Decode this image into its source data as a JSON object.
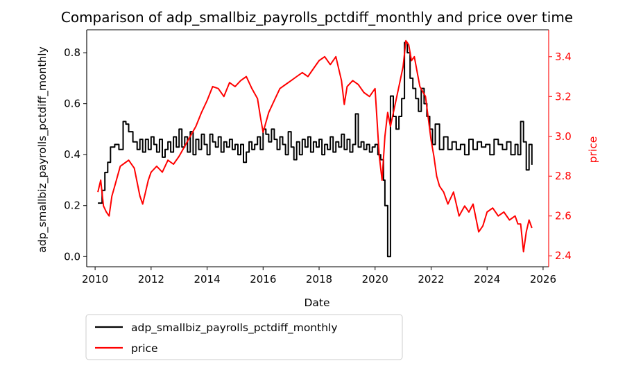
{
  "chart_data": {
    "type": "line",
    "title": "Comparison of adp_smallbiz_payrolls_pctdiff_monthly and price over time",
    "xlabel": "Date",
    "ylabel_left": "adp_smallbiz_payrolls_pctdiff_monthly",
    "ylabel_right": "price",
    "xlim": [
      2009.7,
      2026.2
    ],
    "ylim_left": [
      -0.04,
      0.89
    ],
    "ylim_right": [
      2.345,
      3.535
    ],
    "x_ticks": [
      2010,
      2012,
      2014,
      2016,
      2018,
      2020,
      2022,
      2024,
      2026
    ],
    "x_tick_labels": [
      "2010",
      "2012",
      "2014",
      "2016",
      "2018",
      "2020",
      "2022",
      "2024",
      "2026"
    ],
    "y_left_ticks": [
      0.0,
      0.2,
      0.4,
      0.6,
      0.8
    ],
    "y_left_tick_labels": [
      "0.0",
      "0.2",
      "0.4",
      "0.6",
      "0.8"
    ],
    "y_right_ticks": [
      2.4,
      2.6,
      2.8,
      3.0,
      3.2,
      3.4
    ],
    "y_right_tick_labels": [
      "2.4",
      "2.6",
      "2.8",
      "3.0",
      "3.2",
      "3.4"
    ],
    "grid": false,
    "legend_placement": "below-left",
    "right_axis_color": "#ff0000",
    "series": [
      {
        "name": "adp_smallbiz_payrolls_pctdiff_monthly",
        "axis": "left",
        "color": "#000000",
        "step": true,
        "x": [
          2010.1,
          2010.25,
          2010.35,
          2010.45,
          2010.55,
          2010.7,
          2010.85,
          2011.0,
          2011.1,
          2011.2,
          2011.35,
          2011.5,
          2011.6,
          2011.7,
          2011.8,
          2011.9,
          2012.0,
          2012.1,
          2012.2,
          2012.3,
          2012.4,
          2012.5,
          2012.6,
          2012.7,
          2012.8,
          2012.9,
          2013.0,
          2013.1,
          2013.2,
          2013.3,
          2013.4,
          2013.5,
          2013.6,
          2013.7,
          2013.8,
          2013.9,
          2014.0,
          2014.1,
          2014.2,
          2014.3,
          2014.4,
          2014.5,
          2014.6,
          2014.7,
          2014.8,
          2014.9,
          2015.0,
          2015.1,
          2015.2,
          2015.3,
          2015.4,
          2015.5,
          2015.6,
          2015.7,
          2015.8,
          2015.9,
          2016.0,
          2016.1,
          2016.2,
          2016.3,
          2016.4,
          2016.5,
          2016.6,
          2016.7,
          2016.8,
          2016.9,
          2017.0,
          2017.1,
          2017.2,
          2017.3,
          2017.4,
          2017.5,
          2017.6,
          2017.7,
          2017.8,
          2017.9,
          2018.0,
          2018.1,
          2018.2,
          2018.3,
          2018.4,
          2018.5,
          2018.6,
          2018.7,
          2018.8,
          2018.9,
          2019.0,
          2019.1,
          2019.2,
          2019.3,
          2019.4,
          2019.5,
          2019.6,
          2019.7,
          2019.8,
          2019.9,
          2020.0,
          2020.1,
          2020.2,
          2020.3,
          2020.35,
          2020.45,
          2020.55,
          2020.65,
          2020.75,
          2020.85,
          2020.95,
          2021.05,
          2021.15,
          2021.25,
          2021.35,
          2021.45,
          2021.55,
          2021.65,
          2021.75,
          2021.85,
          2021.95,
          2022.05,
          2022.15,
          2022.3,
          2022.45,
          2022.6,
          2022.75,
          2022.9,
          2023.05,
          2023.2,
          2023.35,
          2023.5,
          2023.65,
          2023.8,
          2023.95,
          2024.1,
          2024.25,
          2024.4,
          2024.55,
          2024.7,
          2024.85,
          2025.0,
          2025.1,
          2025.2,
          2025.3,
          2025.4,
          2025.5,
          2025.6
        ],
        "y": [
          0.21,
          0.26,
          0.33,
          0.37,
          0.43,
          0.44,
          0.42,
          0.53,
          0.52,
          0.49,
          0.45,
          0.42,
          0.46,
          0.41,
          0.46,
          0.42,
          0.47,
          0.44,
          0.41,
          0.46,
          0.39,
          0.42,
          0.45,
          0.41,
          0.47,
          0.43,
          0.5,
          0.43,
          0.47,
          0.41,
          0.49,
          0.4,
          0.46,
          0.42,
          0.48,
          0.44,
          0.4,
          0.48,
          0.45,
          0.43,
          0.47,
          0.41,
          0.45,
          0.43,
          0.46,
          0.42,
          0.44,
          0.4,
          0.44,
          0.37,
          0.41,
          0.45,
          0.42,
          0.44,
          0.47,
          0.42,
          0.5,
          0.48,
          0.45,
          0.5,
          0.46,
          0.42,
          0.47,
          0.44,
          0.4,
          0.49,
          0.43,
          0.38,
          0.45,
          0.4,
          0.46,
          0.43,
          0.47,
          0.41,
          0.45,
          0.43,
          0.46,
          0.4,
          0.44,
          0.42,
          0.47,
          0.41,
          0.45,
          0.43,
          0.48,
          0.42,
          0.46,
          0.41,
          0.44,
          0.56,
          0.43,
          0.45,
          0.42,
          0.44,
          0.41,
          0.43,
          0.44,
          0.4,
          0.38,
          0.3,
          0.2,
          0.0,
          0.63,
          0.55,
          0.5,
          0.55,
          0.62,
          0.84,
          0.8,
          0.7,
          0.66,
          0.62,
          0.57,
          0.66,
          0.6,
          0.55,
          0.5,
          0.44,
          0.52,
          0.42,
          0.47,
          0.42,
          0.45,
          0.42,
          0.44,
          0.4,
          0.46,
          0.42,
          0.45,
          0.43,
          0.44,
          0.4,
          0.46,
          0.44,
          0.42,
          0.45,
          0.4,
          0.44,
          0.4,
          0.53,
          0.45,
          0.34,
          0.44,
          0.36
        ]
      },
      {
        "name": "price",
        "axis": "right",
        "color": "#ff0000",
        "step": false,
        "x": [
          2010.1,
          2010.2,
          2010.3,
          2010.4,
          2010.5,
          2010.6,
          2010.7,
          2010.8,
          2010.9,
          2011.0,
          2011.2,
          2011.4,
          2011.6,
          2011.7,
          2011.8,
          2011.9,
          2012.0,
          2012.2,
          2012.4,
          2012.6,
          2012.8,
          2013.0,
          2013.2,
          2013.4,
          2013.6,
          2013.8,
          2014.0,
          2014.2,
          2014.4,
          2014.6,
          2014.8,
          2015.0,
          2015.2,
          2015.4,
          2015.6,
          2015.8,
          2015.9,
          2016.0,
          2016.2,
          2016.4,
          2016.6,
          2016.8,
          2017.0,
          2017.2,
          2017.4,
          2017.6,
          2017.8,
          2018.0,
          2018.2,
          2018.4,
          2018.6,
          2018.8,
          2018.9,
          2019.0,
          2019.2,
          2019.4,
          2019.6,
          2019.8,
          2020.0,
          2020.15,
          2020.25,
          2020.35,
          2020.45,
          2020.55,
          2020.7,
          2020.85,
          2021.0,
          2021.1,
          2021.2,
          2021.3,
          2021.4,
          2021.6,
          2021.8,
          2022.0,
          2022.1,
          2022.2,
          2022.3,
          2022.45,
          2022.6,
          2022.8,
          2023.0,
          2023.2,
          2023.35,
          2023.5,
          2023.7,
          2023.85,
          2024.0,
          2024.2,
          2024.4,
          2024.6,
          2024.8,
          2025.0,
          2025.1,
          2025.2,
          2025.3,
          2025.4,
          2025.5,
          2025.6
        ],
        "y": [
          2.72,
          2.78,
          2.65,
          2.62,
          2.6,
          2.7,
          2.75,
          2.8,
          2.85,
          2.86,
          2.88,
          2.84,
          2.7,
          2.66,
          2.72,
          2.78,
          2.82,
          2.85,
          2.82,
          2.88,
          2.86,
          2.9,
          2.95,
          3.0,
          3.05,
          3.12,
          3.18,
          3.25,
          3.24,
          3.2,
          3.27,
          3.25,
          3.28,
          3.3,
          3.24,
          3.19,
          3.1,
          3.02,
          3.12,
          3.18,
          3.24,
          3.26,
          3.28,
          3.3,
          3.32,
          3.3,
          3.34,
          3.38,
          3.4,
          3.36,
          3.4,
          3.28,
          3.16,
          3.25,
          3.28,
          3.26,
          3.22,
          3.2,
          3.24,
          2.9,
          2.78,
          3.0,
          3.12,
          3.05,
          3.15,
          3.25,
          3.35,
          3.48,
          3.46,
          3.38,
          3.4,
          3.25,
          3.2,
          2.98,
          2.9,
          2.8,
          2.75,
          2.72,
          2.66,
          2.72,
          2.6,
          2.65,
          2.62,
          2.66,
          2.52,
          2.55,
          2.62,
          2.64,
          2.6,
          2.62,
          2.58,
          2.6,
          2.56,
          2.56,
          2.42,
          2.52,
          2.58,
          2.54
        ]
      }
    ]
  }
}
